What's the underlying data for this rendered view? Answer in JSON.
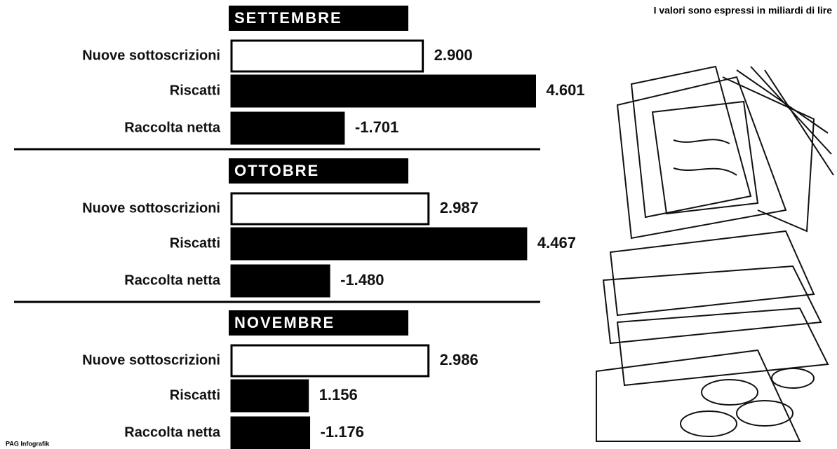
{
  "note": "I valori sono espressi in miliardi di lire",
  "credit": "PAG Infografik",
  "chart_data": [
    {
      "type": "bar",
      "title": "SETTEMBRE",
      "categories": [
        "Nuove sottoscrizioni",
        "Riscatti",
        "Raccolta netta"
      ],
      "values": [
        2900,
        4601,
        -1701
      ],
      "value_labels": [
        "2.900",
        "4.601",
        "-1.701"
      ],
      "colors": [
        "#ffffff",
        "#000000",
        "#000000"
      ],
      "xlim": [
        0,
        5000
      ]
    },
    {
      "type": "bar",
      "title": "OTTOBRE",
      "categories": [
        "Nuove sottoscrizioni",
        "Riscatti",
        "Raccolta netta"
      ],
      "values": [
        2987,
        4467,
        -1480
      ],
      "value_labels": [
        "2.987",
        "4.467",
        "-1.480"
      ],
      "colors": [
        "#ffffff",
        "#000000",
        "#000000"
      ],
      "xlim": [
        0,
        5000
      ]
    },
    {
      "type": "bar",
      "title": "NOVEMBRE",
      "categories": [
        "Nuove sottoscrizioni",
        "Riscatti",
        "Raccolta netta"
      ],
      "values": [
        2986,
        1156,
        -1176
      ],
      "value_labels": [
        "2.986",
        "1.156",
        "-1.176"
      ],
      "colors": [
        "#ffffff",
        "#000000",
        "#000000"
      ],
      "xlim": [
        0,
        5000
      ]
    }
  ]
}
